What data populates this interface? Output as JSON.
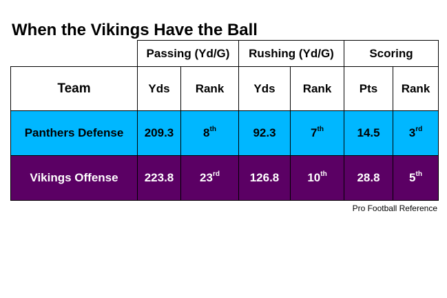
{
  "title": "When the Vikings Have the Ball",
  "groups": {
    "passing": "Passing (Yd/G)",
    "rushing": "Rushing (Yd/G)",
    "scoring": "Scoring"
  },
  "columns": {
    "team": "Team",
    "pass_yds": "Yds",
    "pass_rank": "Rank",
    "rush_yds": "Yds",
    "rush_rank": "Rank",
    "pts": "Pts",
    "pts_rank": "Rank"
  },
  "rows": [
    {
      "team": "Panthers Defense",
      "pass_yds": "209.3",
      "pass_rank": "8",
      "pass_rank_suffix": "th",
      "rush_yds": "92.3",
      "rush_rank": "7",
      "rush_rank_suffix": "th",
      "pts": "14.5",
      "pts_rank": "3",
      "pts_rank_suffix": "rd",
      "bg_color": "#00b7ff",
      "text_color": "#000000"
    },
    {
      "team": "Vikings Offense",
      "pass_yds": "223.8",
      "pass_rank": "23",
      "pass_rank_suffix": "rd",
      "rush_yds": "126.8",
      "rush_rank": "10",
      "rush_rank_suffix": "th",
      "pts": "28.8",
      "pts_rank": "5",
      "pts_rank_suffix": "th",
      "bg_color": "#5b0064",
      "text_color": "#ffffff"
    }
  ],
  "source": "Pro Football Reference"
}
